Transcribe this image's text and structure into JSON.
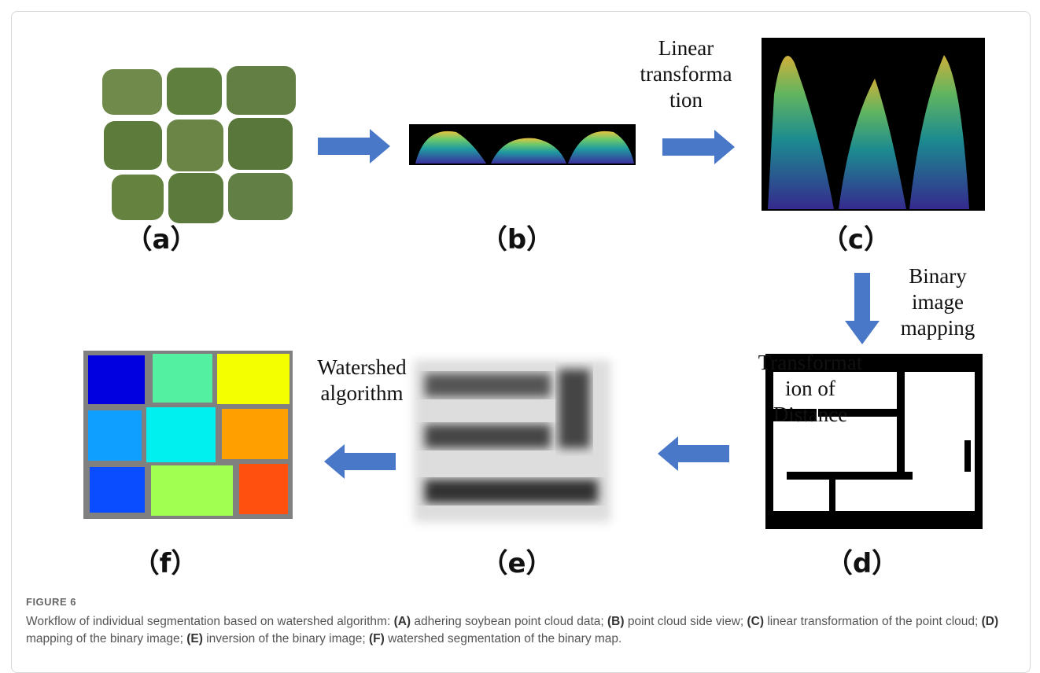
{
  "figure_label": "FIGURE 6",
  "panels": [
    "（a）",
    "（b）",
    "（c）",
    "（d）",
    "（e）",
    "（f）"
  ],
  "steps": [
    {
      "lines": [
        "Linear",
        "transforma",
        "tion"
      ]
    },
    {
      "lines": [
        "Binary",
        "image",
        "mapping"
      ]
    },
    {
      "lines": [
        "Transformat",
        "ion of",
        "Distance"
      ]
    },
    {
      "lines": [
        "Watershed",
        "algorithm"
      ]
    }
  ],
  "caption": {
    "lead": "Workflow of individual segmentation based on watershed algorithm:",
    "items": [
      {
        "label": "(A)",
        "text": "adhering soybean point cloud data;"
      },
      {
        "label": "(B)",
        "text": "point cloud side view;"
      },
      {
        "label": "(C)",
        "text": "linear transformation of the point cloud;"
      },
      {
        "label": "(D)",
        "text": "mapping of the binary image;"
      },
      {
        "label": "(E)",
        "text": "inversion of the binary image;"
      },
      {
        "label": "(F)",
        "text": "watershed segmentation of the binary map."
      }
    ]
  }
}
